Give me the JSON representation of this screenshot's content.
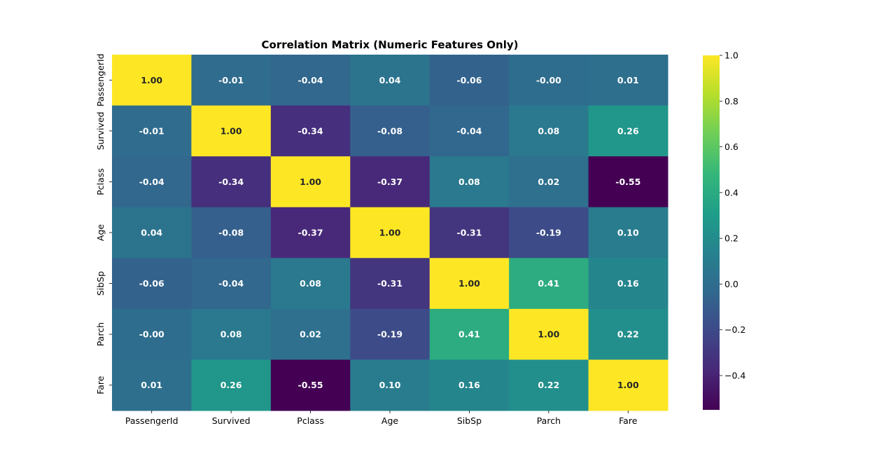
{
  "chart_data": {
    "type": "heatmap",
    "title": "Correlation Matrix (Numeric Features Only)",
    "x_labels": [
      "PassengerId",
      "Survived",
      "Pclass",
      "Age",
      "SibSp",
      "Parch",
      "Fare"
    ],
    "y_labels": [
      "PassengerId",
      "Survived",
      "Pclass",
      "Age",
      "SibSp",
      "Parch",
      "Fare"
    ],
    "values": [
      [
        1.0,
        -0.01,
        -0.04,
        0.04,
        -0.06,
        -0.0,
        0.01
      ],
      [
        -0.01,
        1.0,
        -0.34,
        -0.08,
        -0.04,
        0.08,
        0.26
      ],
      [
        -0.04,
        -0.34,
        1.0,
        -0.37,
        0.08,
        0.02,
        -0.55
      ],
      [
        0.04,
        -0.08,
        -0.37,
        1.0,
        -0.31,
        -0.19,
        0.1
      ],
      [
        -0.06,
        -0.04,
        0.08,
        -0.31,
        1.0,
        0.41,
        0.16
      ],
      [
        -0.0,
        0.08,
        0.02,
        -0.19,
        0.41,
        1.0,
        0.22
      ],
      [
        0.01,
        0.26,
        -0.55,
        0.1,
        0.16,
        0.22,
        1.0
      ]
    ],
    "value_format": "0.00",
    "colormap": "viridis",
    "color_range": [
      -0.55,
      1.0
    ],
    "colorbar": {
      "ticks": [
        1.0,
        0.8,
        0.6,
        0.4,
        0.2,
        0.0,
        -0.2,
        -0.4
      ],
      "tick_labels": [
        "1.0",
        "0.8",
        "0.6",
        "0.4",
        "0.2",
        "0.0",
        "−0.2",
        "−0.4"
      ]
    },
    "colors": {
      "viridis_stops": [
        "#440154",
        "#482878",
        "#3e4989",
        "#31688e",
        "#26828e",
        "#1f9e89",
        "#35b779",
        "#6ece58",
        "#b5de2b",
        "#fde725"
      ],
      "annotation_light": "#ffffff",
      "annotation_dark": "#262626"
    }
  }
}
